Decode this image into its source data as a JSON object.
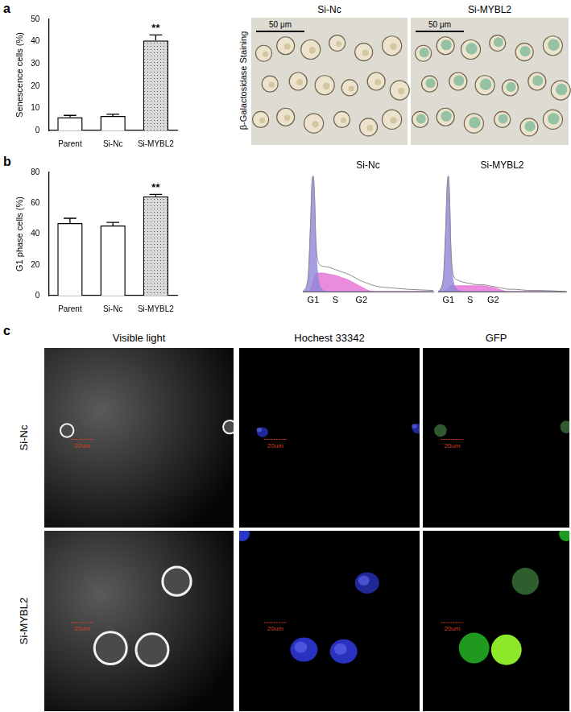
{
  "panel_labels": [
    "a",
    "b",
    "c"
  ],
  "chart_data": [
    {
      "type": "bar",
      "categories": [
        "Parent",
        "Si-Nc",
        "Si-MYBL2"
      ],
      "values": [
        6,
        6.5,
        40.5
      ],
      "errors": [
        0.8,
        0.8,
        2.5
      ],
      "colors": [
        "#ffffff",
        "#ffffff",
        "#d9d9d9"
      ],
      "y_label": "Senescence cells (%)",
      "ylim": [
        0,
        50
      ],
      "yticks": [
        0,
        10,
        20,
        30,
        40,
        50
      ],
      "annotations": [
        {
          "text": "**",
          "category": "Si-MYBL2"
        }
      ]
    },
    {
      "type": "bar",
      "categories": [
        "Parent",
        "Si-Nc",
        "Si-MYBL2"
      ],
      "values": [
        47,
        45.5,
        64.5
      ],
      "errors": [
        3.2,
        2,
        1.2
      ],
      "colors": [
        "#ffffff",
        "#ffffff",
        "#d9d9d9"
      ],
      "y_label": "G1 phase cells (%)",
      "ylim": [
        0,
        80
      ],
      "yticks": [
        0,
        20,
        40,
        60,
        80
      ],
      "annotations": [
        {
          "text": "**",
          "category": "Si-MYBL2"
        }
      ]
    },
    {
      "type": "area",
      "title": "Si-Nc",
      "x": [
        0,
        4,
        6,
        7,
        8,
        9,
        10,
        12,
        15,
        20,
        25,
        30,
        35,
        40,
        45,
        50,
        55,
        60,
        70,
        80,
        100
      ],
      "series": [
        {
          "type": "line",
          "color": "#8c8c8c",
          "values": [
            0,
            12,
            62,
            95,
            100,
            82,
            45,
            25,
            22,
            21,
            19,
            17,
            15,
            12,
            9,
            7,
            5,
            4,
            3,
            2,
            1
          ]
        },
        {
          "type": "area",
          "color": "#8f86d9",
          "values": [
            0,
            10,
            60,
            90,
            100,
            80,
            40,
            10,
            2,
            0,
            0,
            0,
            0,
            0,
            0,
            0,
            0,
            0,
            0,
            0,
            0
          ]
        },
        {
          "type": "area",
          "color": "#e36fd6",
          "values": [
            0,
            0,
            2,
            5,
            10,
            14,
            15,
            16,
            16,
            15,
            14,
            12,
            10,
            7,
            4,
            1,
            0,
            0,
            0,
            0,
            0
          ]
        }
      ],
      "xlim": [
        0,
        100
      ],
      "ylim": [
        0,
        100
      ],
      "tick_labels": false,
      "annotations": [
        {
          "text": "G1",
          "x": 8
        },
        {
          "text": "S",
          "x": 25
        },
        {
          "text": "G2",
          "x": 45
        }
      ]
    },
    {
      "type": "area",
      "title": "Si-MYBL2",
      "x": [
        0,
        4,
        6,
        7,
        8,
        9,
        10,
        12,
        15,
        20,
        25,
        30,
        35,
        40,
        45,
        50,
        55,
        60,
        70,
        80,
        100
      ],
      "series": [
        {
          "type": "line",
          "color": "#8c8c8c",
          "values": [
            0,
            11,
            57,
            91,
            100,
            80,
            38,
            14,
            10,
            8,
            7,
            6,
            6,
            5,
            4,
            3,
            2,
            2,
            1,
            1,
            0
          ]
        },
        {
          "type": "area",
          "color": "#8f86d9",
          "values": [
            0,
            10,
            55,
            88,
            100,
            78,
            35,
            8,
            2,
            0,
            0,
            0,
            0,
            0,
            0,
            0,
            0,
            0,
            0,
            0,
            0
          ]
        },
        {
          "type": "area",
          "color": "#e36fd6",
          "values": [
            0,
            0,
            1,
            2,
            3,
            4,
            5,
            5,
            5,
            5,
            5,
            5,
            5,
            4,
            3,
            1,
            0,
            0,
            0,
            0,
            0
          ]
        }
      ],
      "xlim": [
        0,
        100
      ],
      "ylim": [
        0,
        100
      ],
      "tick_labels": false,
      "annotations": [
        {
          "text": "G1",
          "x": 8
        },
        {
          "text": "S",
          "x": 25
        },
        {
          "text": "G2",
          "x": 43
        }
      ]
    }
  ],
  "staining": {
    "side_label": "β-Galactosidase Staining",
    "images": [
      {
        "title": "Si-Nc",
        "scale_bar": "50 μm"
      },
      {
        "title": "Si-MYBL2",
        "scale_bar": "50 μm"
      }
    ]
  },
  "microscopy": {
    "columns": [
      "Visible light",
      "Hochest 33342",
      "GFP"
    ],
    "rows": [
      "Si-Nc",
      "Si-MYBL2"
    ],
    "scale_bar": "20um"
  }
}
